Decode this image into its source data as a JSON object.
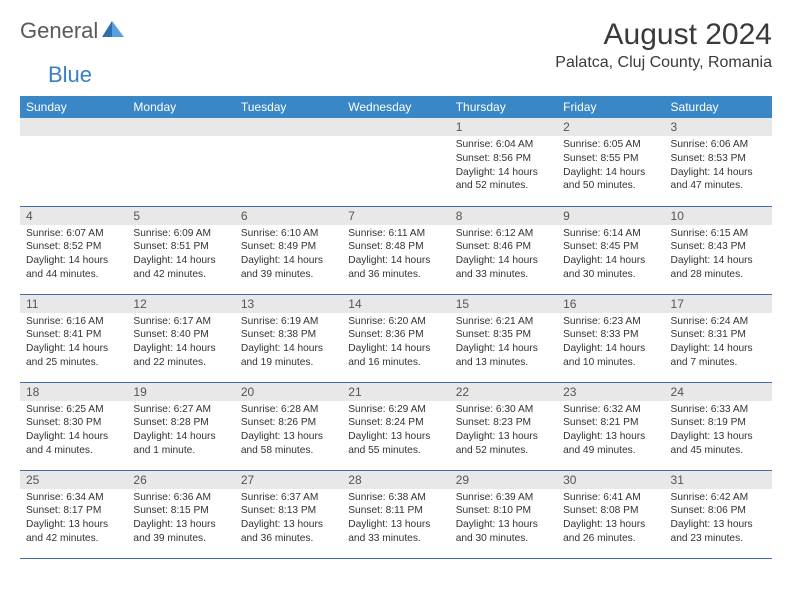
{
  "brand": {
    "part1": "General",
    "part2": "Blue"
  },
  "title": "August 2024",
  "location": "Palatca, Cluj County, Romania",
  "colors": {
    "header_bg": "#3a87c8",
    "header_text": "#ffffff",
    "daynum_bg": "#e8e8e8",
    "border": "#3a6fa8",
    "brand_blue": "#3a7fc4",
    "brand_gray": "#5a5a5a"
  },
  "weekdays": [
    "Sunday",
    "Monday",
    "Tuesday",
    "Wednesday",
    "Thursday",
    "Friday",
    "Saturday"
  ],
  "weeks": [
    [
      {
        "day": "",
        "lines": []
      },
      {
        "day": "",
        "lines": []
      },
      {
        "day": "",
        "lines": []
      },
      {
        "day": "",
        "lines": []
      },
      {
        "day": "1",
        "lines": [
          "Sunrise: 6:04 AM",
          "Sunset: 8:56 PM",
          "Daylight: 14 hours and 52 minutes."
        ]
      },
      {
        "day": "2",
        "lines": [
          "Sunrise: 6:05 AM",
          "Sunset: 8:55 PM",
          "Daylight: 14 hours and 50 minutes."
        ]
      },
      {
        "day": "3",
        "lines": [
          "Sunrise: 6:06 AM",
          "Sunset: 8:53 PM",
          "Daylight: 14 hours and 47 minutes."
        ]
      }
    ],
    [
      {
        "day": "4",
        "lines": [
          "Sunrise: 6:07 AM",
          "Sunset: 8:52 PM",
          "Daylight: 14 hours and 44 minutes."
        ]
      },
      {
        "day": "5",
        "lines": [
          "Sunrise: 6:09 AM",
          "Sunset: 8:51 PM",
          "Daylight: 14 hours and 42 minutes."
        ]
      },
      {
        "day": "6",
        "lines": [
          "Sunrise: 6:10 AM",
          "Sunset: 8:49 PM",
          "Daylight: 14 hours and 39 minutes."
        ]
      },
      {
        "day": "7",
        "lines": [
          "Sunrise: 6:11 AM",
          "Sunset: 8:48 PM",
          "Daylight: 14 hours and 36 minutes."
        ]
      },
      {
        "day": "8",
        "lines": [
          "Sunrise: 6:12 AM",
          "Sunset: 8:46 PM",
          "Daylight: 14 hours and 33 minutes."
        ]
      },
      {
        "day": "9",
        "lines": [
          "Sunrise: 6:14 AM",
          "Sunset: 8:45 PM",
          "Daylight: 14 hours and 30 minutes."
        ]
      },
      {
        "day": "10",
        "lines": [
          "Sunrise: 6:15 AM",
          "Sunset: 8:43 PM",
          "Daylight: 14 hours and 28 minutes."
        ]
      }
    ],
    [
      {
        "day": "11",
        "lines": [
          "Sunrise: 6:16 AM",
          "Sunset: 8:41 PM",
          "Daylight: 14 hours and 25 minutes."
        ]
      },
      {
        "day": "12",
        "lines": [
          "Sunrise: 6:17 AM",
          "Sunset: 8:40 PM",
          "Daylight: 14 hours and 22 minutes."
        ]
      },
      {
        "day": "13",
        "lines": [
          "Sunrise: 6:19 AM",
          "Sunset: 8:38 PM",
          "Daylight: 14 hours and 19 minutes."
        ]
      },
      {
        "day": "14",
        "lines": [
          "Sunrise: 6:20 AM",
          "Sunset: 8:36 PM",
          "Daylight: 14 hours and 16 minutes."
        ]
      },
      {
        "day": "15",
        "lines": [
          "Sunrise: 6:21 AM",
          "Sunset: 8:35 PM",
          "Daylight: 14 hours and 13 minutes."
        ]
      },
      {
        "day": "16",
        "lines": [
          "Sunrise: 6:23 AM",
          "Sunset: 8:33 PM",
          "Daylight: 14 hours and 10 minutes."
        ]
      },
      {
        "day": "17",
        "lines": [
          "Sunrise: 6:24 AM",
          "Sunset: 8:31 PM",
          "Daylight: 14 hours and 7 minutes."
        ]
      }
    ],
    [
      {
        "day": "18",
        "lines": [
          "Sunrise: 6:25 AM",
          "Sunset: 8:30 PM",
          "Daylight: 14 hours and 4 minutes."
        ]
      },
      {
        "day": "19",
        "lines": [
          "Sunrise: 6:27 AM",
          "Sunset: 8:28 PM",
          "Daylight: 14 hours and 1 minute."
        ]
      },
      {
        "day": "20",
        "lines": [
          "Sunrise: 6:28 AM",
          "Sunset: 8:26 PM",
          "Daylight: 13 hours and 58 minutes."
        ]
      },
      {
        "day": "21",
        "lines": [
          "Sunrise: 6:29 AM",
          "Sunset: 8:24 PM",
          "Daylight: 13 hours and 55 minutes."
        ]
      },
      {
        "day": "22",
        "lines": [
          "Sunrise: 6:30 AM",
          "Sunset: 8:23 PM",
          "Daylight: 13 hours and 52 minutes."
        ]
      },
      {
        "day": "23",
        "lines": [
          "Sunrise: 6:32 AM",
          "Sunset: 8:21 PM",
          "Daylight: 13 hours and 49 minutes."
        ]
      },
      {
        "day": "24",
        "lines": [
          "Sunrise: 6:33 AM",
          "Sunset: 8:19 PM",
          "Daylight: 13 hours and 45 minutes."
        ]
      }
    ],
    [
      {
        "day": "25",
        "lines": [
          "Sunrise: 6:34 AM",
          "Sunset: 8:17 PM",
          "Daylight: 13 hours and 42 minutes."
        ]
      },
      {
        "day": "26",
        "lines": [
          "Sunrise: 6:36 AM",
          "Sunset: 8:15 PM",
          "Daylight: 13 hours and 39 minutes."
        ]
      },
      {
        "day": "27",
        "lines": [
          "Sunrise: 6:37 AM",
          "Sunset: 8:13 PM",
          "Daylight: 13 hours and 36 minutes."
        ]
      },
      {
        "day": "28",
        "lines": [
          "Sunrise: 6:38 AM",
          "Sunset: 8:11 PM",
          "Daylight: 13 hours and 33 minutes."
        ]
      },
      {
        "day": "29",
        "lines": [
          "Sunrise: 6:39 AM",
          "Sunset: 8:10 PM",
          "Daylight: 13 hours and 30 minutes."
        ]
      },
      {
        "day": "30",
        "lines": [
          "Sunrise: 6:41 AM",
          "Sunset: 8:08 PM",
          "Daylight: 13 hours and 26 minutes."
        ]
      },
      {
        "day": "31",
        "lines": [
          "Sunrise: 6:42 AM",
          "Sunset: 8:06 PM",
          "Daylight: 13 hours and 23 minutes."
        ]
      }
    ]
  ]
}
